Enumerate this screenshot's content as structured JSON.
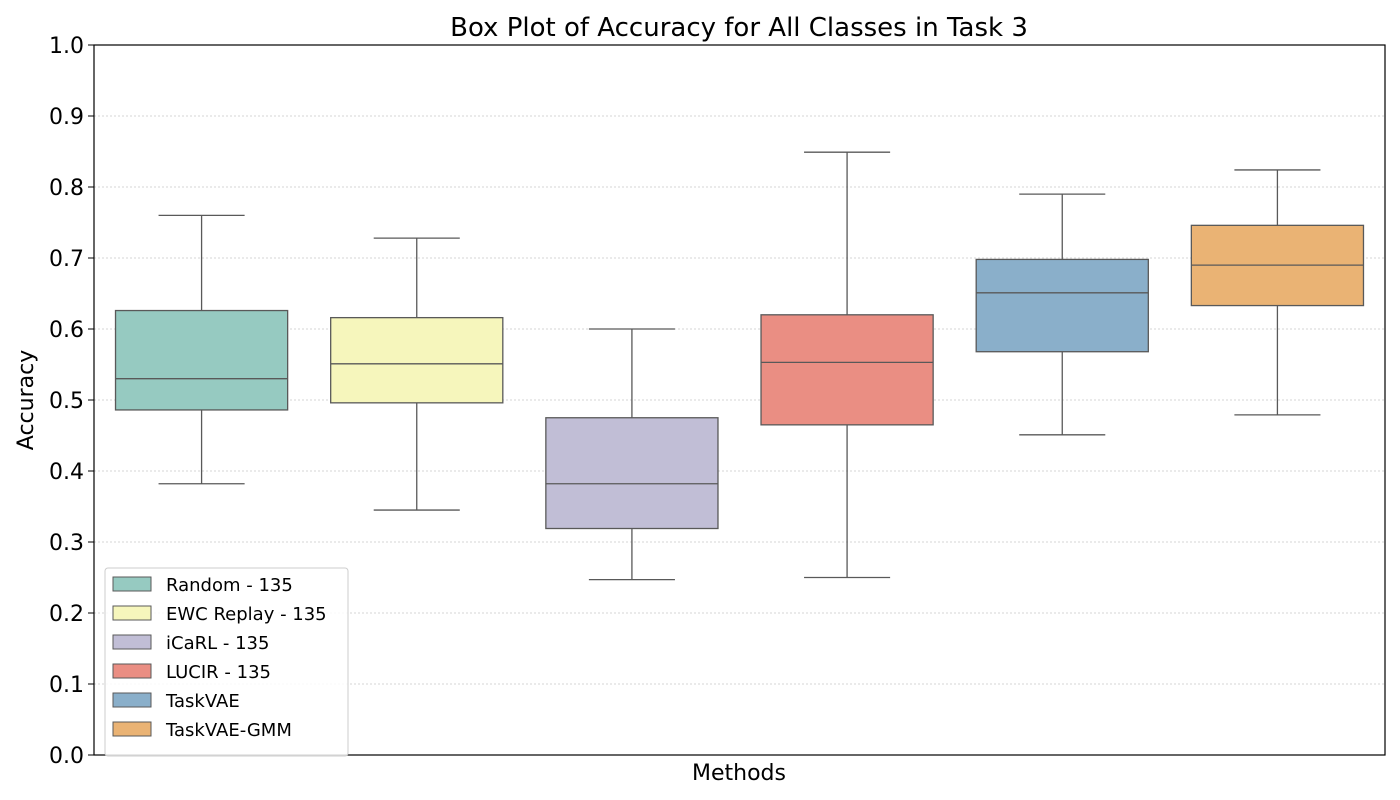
{
  "chart_data": {
    "type": "box",
    "title": "Box Plot of Accuracy for All Classes in Task 3",
    "xlabel": "Methods",
    "ylabel": "Accuracy",
    "ylim": [
      0.0,
      1.0
    ],
    "yticks": [
      "0.0",
      "0.1",
      "0.2",
      "0.3",
      "0.4",
      "0.5",
      "0.6",
      "0.7",
      "0.8",
      "0.9",
      "1.0"
    ],
    "grid": true,
    "legend_position": "lower-left",
    "series": [
      {
        "name": "Random - 135",
        "color": "#96cac1",
        "whisker_low": 0.382,
        "q1": 0.486,
        "median": 0.53,
        "q3": 0.626,
        "whisker_high": 0.76
      },
      {
        "name": "EWC Replay - 135",
        "color": "#f6f6bc",
        "whisker_low": 0.345,
        "q1": 0.496,
        "median": 0.551,
        "q3": 0.616,
        "whisker_high": 0.728
      },
      {
        "name": "iCaRL - 135",
        "color": "#c1bed6",
        "whisker_low": 0.247,
        "q1": 0.319,
        "median": 0.382,
        "q3": 0.475,
        "whisker_high": 0.6
      },
      {
        "name": "LUCIR - 135",
        "color": "#ea8e83",
        "whisker_low": 0.25,
        "q1": 0.465,
        "median": 0.553,
        "q3": 0.62,
        "whisker_high": 0.849
      },
      {
        "name": "TaskVAE",
        "color": "#8aafca",
        "whisker_low": 0.451,
        "q1": 0.568,
        "median": 0.651,
        "q3": 0.698,
        "whisker_high": 0.79
      },
      {
        "name": "TaskVAE-GMM",
        "color": "#eab374",
        "whisker_low": 0.479,
        "q1": 0.633,
        "median": 0.69,
        "q3": 0.746,
        "whisker_high": 0.824
      }
    ]
  }
}
